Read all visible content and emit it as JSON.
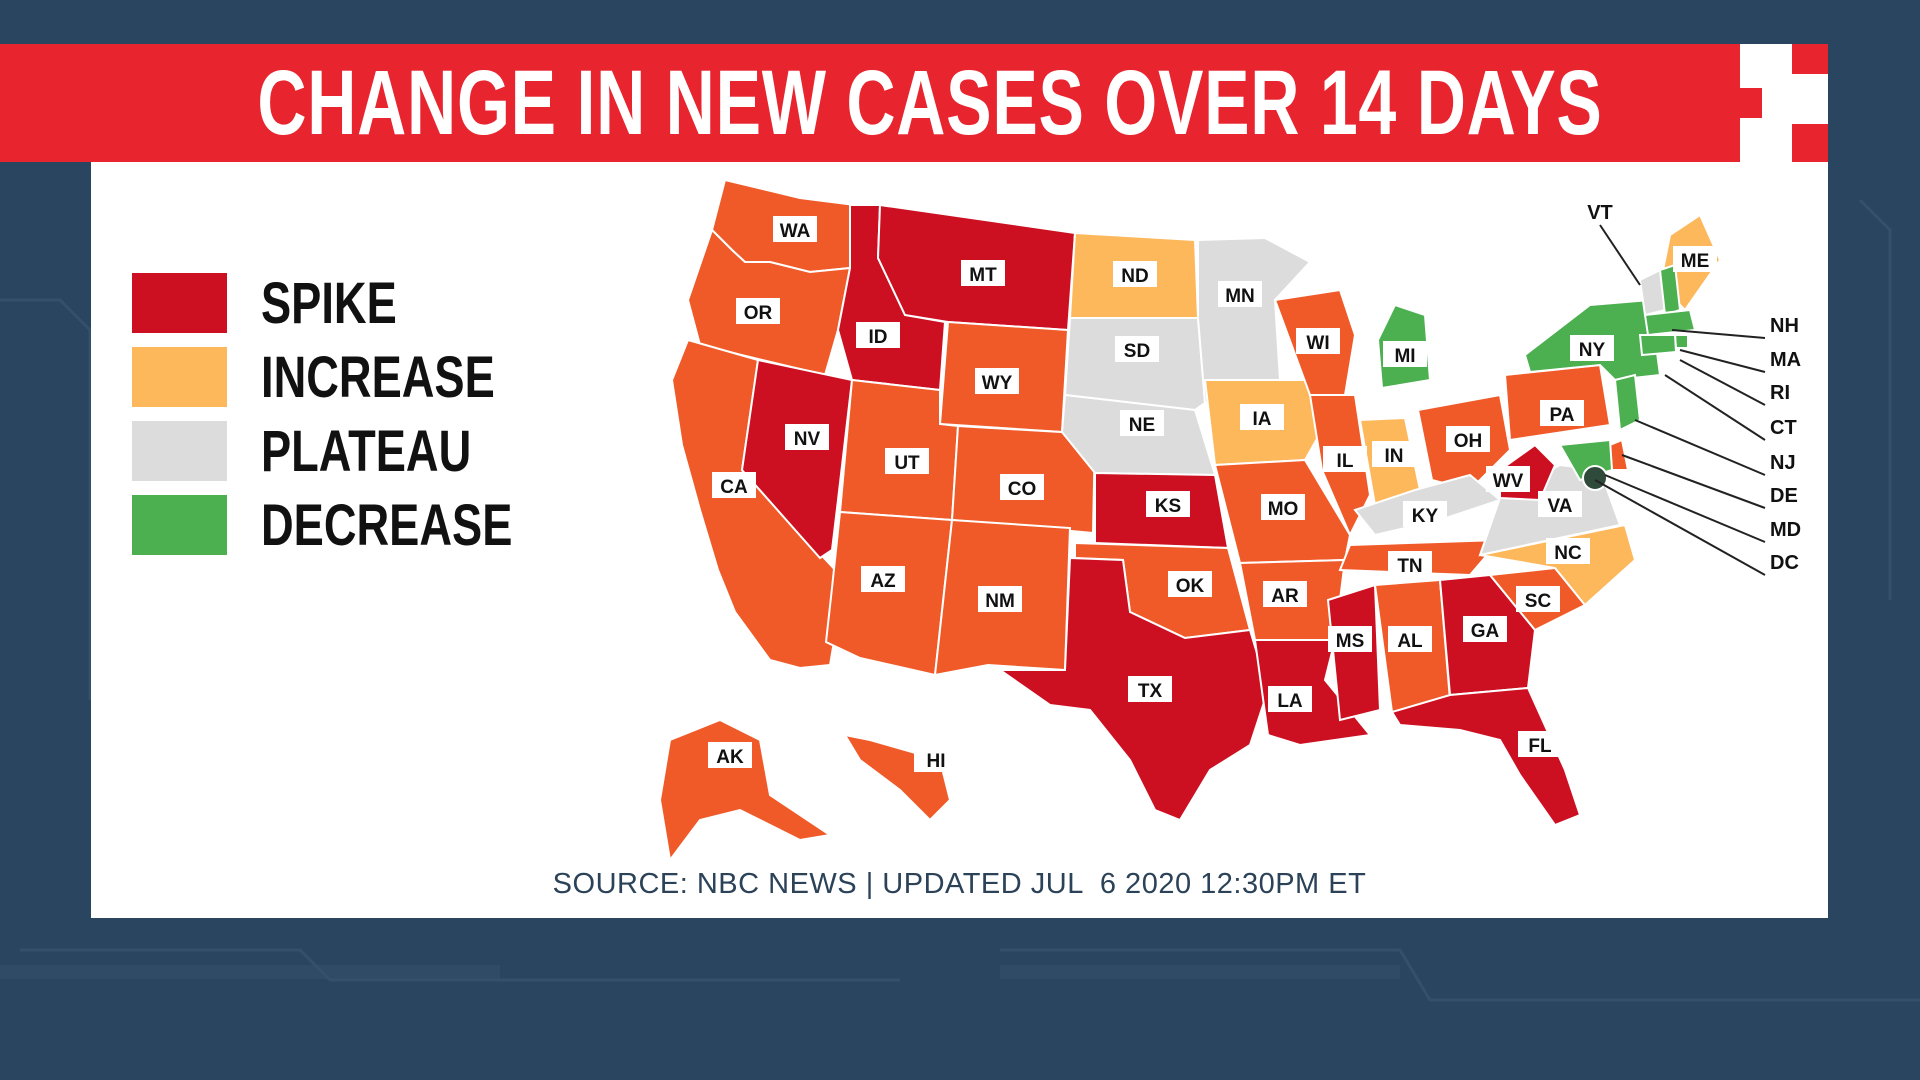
{
  "title": "CHANGE IN NEW CASES OVER 14 DAYS",
  "legend": [
    {
      "label": "SPIKE",
      "color": "#cc1022"
    },
    {
      "label": "INCREASE",
      "color": "#fdb85c"
    },
    {
      "label": "PLATEAU",
      "color": "#dcdcdc"
    },
    {
      "label": "DECREASE",
      "color": "#4caf50"
    }
  ],
  "source": "SOURCE: NBC NEWS | UPDATED JUL  6 2020 12:30PM ET",
  "category_colors": {
    "spike": "#cc1022",
    "increase": "#fdb85c",
    "plateau": "#dcdcdc",
    "decrease": "#4caf50",
    "rising": "#f05a28"
  },
  "states": [
    {
      "code": "WA",
      "status": "rising"
    },
    {
      "code": "OR",
      "status": "rising"
    },
    {
      "code": "CA",
      "status": "rising"
    },
    {
      "code": "ID",
      "status": "spike"
    },
    {
      "code": "NV",
      "status": "spike"
    },
    {
      "code": "MT",
      "status": "spike"
    },
    {
      "code": "WY",
      "status": "rising"
    },
    {
      "code": "UT",
      "status": "rising"
    },
    {
      "code": "AZ",
      "status": "rising"
    },
    {
      "code": "CO",
      "status": "rising"
    },
    {
      "code": "NM",
      "status": "rising"
    },
    {
      "code": "ND",
      "status": "increase"
    },
    {
      "code": "SD",
      "status": "plateau"
    },
    {
      "code": "NE",
      "status": "plateau"
    },
    {
      "code": "KS",
      "status": "spike"
    },
    {
      "code": "OK",
      "status": "rising"
    },
    {
      "code": "TX",
      "status": "spike"
    },
    {
      "code": "MN",
      "status": "plateau"
    },
    {
      "code": "IA",
      "status": "increase"
    },
    {
      "code": "MO",
      "status": "rising"
    },
    {
      "code": "AR",
      "status": "rising"
    },
    {
      "code": "LA",
      "status": "spike"
    },
    {
      "code": "WI",
      "status": "rising"
    },
    {
      "code": "IL",
      "status": "rising"
    },
    {
      "code": "MI",
      "status": "decrease"
    },
    {
      "code": "IN",
      "status": "increase"
    },
    {
      "code": "OH",
      "status": "rising"
    },
    {
      "code": "KY",
      "status": "plateau"
    },
    {
      "code": "TN",
      "status": "rising"
    },
    {
      "code": "MS",
      "status": "spike"
    },
    {
      "code": "AL",
      "status": "rising"
    },
    {
      "code": "GA",
      "status": "spike"
    },
    {
      "code": "FL",
      "status": "spike"
    },
    {
      "code": "SC",
      "status": "rising"
    },
    {
      "code": "NC",
      "status": "increase"
    },
    {
      "code": "VA",
      "status": "plateau"
    },
    {
      "code": "WV",
      "status": "spike"
    },
    {
      "code": "PA",
      "status": "rising"
    },
    {
      "code": "NY",
      "status": "decrease"
    },
    {
      "code": "ME",
      "status": "increase"
    },
    {
      "code": "AK",
      "status": "rising"
    },
    {
      "code": "HI",
      "status": "rising"
    },
    {
      "code": "VT",
      "status": "plateau"
    },
    {
      "code": "NH",
      "status": "decrease"
    },
    {
      "code": "MA",
      "status": "decrease"
    },
    {
      "code": "RI",
      "status": "decrease"
    },
    {
      "code": "CT",
      "status": "decrease"
    },
    {
      "code": "NJ",
      "status": "decrease"
    },
    {
      "code": "DE",
      "status": "rising"
    },
    {
      "code": "MD",
      "status": "decrease"
    },
    {
      "code": "DC",
      "status": "decrease"
    }
  ]
}
